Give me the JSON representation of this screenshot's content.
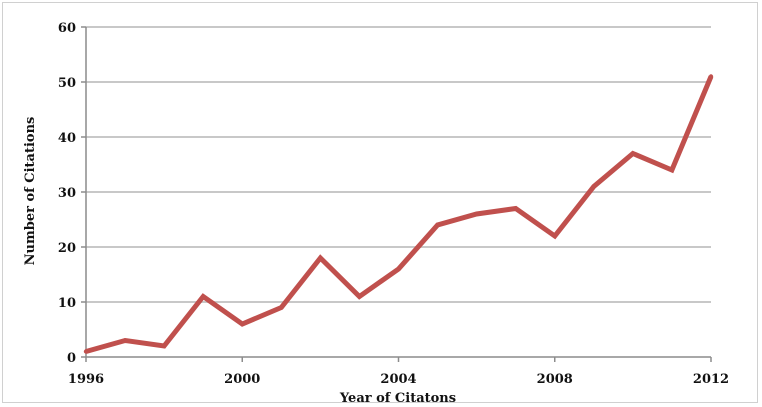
{
  "chart_data": {
    "type": "line",
    "title": "",
    "xlabel": "Year of Citatons",
    "ylabel": "Number of Citations",
    "x": [
      1996,
      1997,
      1998,
      1999,
      2000,
      2001,
      2002,
      2003,
      2004,
      2005,
      2006,
      2007,
      2008,
      2009,
      2010,
      2011,
      2012
    ],
    "series": [
      {
        "values": [
          1,
          3,
          2,
          11,
          6,
          9,
          18,
          11,
          16,
          24,
          26,
          27,
          22,
          31,
          37,
          34,
          51
        ],
        "color": "#c0504d"
      }
    ],
    "xlim": [
      1996,
      2012
    ],
    "ylim": [
      0,
      60
    ],
    "x_ticks": [
      "1996",
      "2000",
      "2004",
      "2008",
      "2012"
    ],
    "y_ticks": [
      "0",
      "10",
      "20",
      "30",
      "40",
      "50",
      "60"
    ],
    "grid": true,
    "legend": "none",
    "gridline_color": "#c8c8c8",
    "axis_color": "#8c8c8c"
  }
}
